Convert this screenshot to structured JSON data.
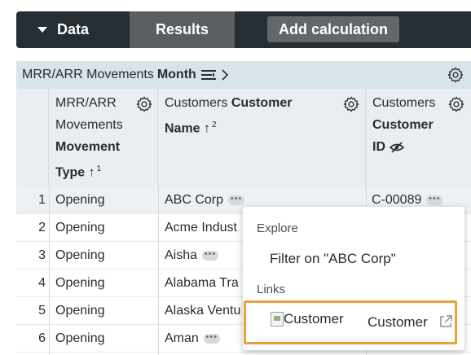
{
  "toolbar": {
    "data_tab": "Data",
    "results_tab": "Results",
    "add_calculation": "Add calculation"
  },
  "table": {
    "group_header": {
      "prefix": "MRR/ARR Movements",
      "bold": "Month"
    },
    "columns": [
      {
        "lines": [
          "MRR/ARR",
          "Movements"
        ],
        "bold_lines": [
          "Movement",
          "Type ↑"
        ],
        "sort_index": "1"
      },
      {
        "line1": "Customers",
        "line1_bold": "Customer",
        "line2_bold": "Name ↑",
        "sort_index": "2"
      },
      {
        "line1": "Customers",
        "line2_bold": "Customer",
        "line3_bold": "ID"
      }
    ],
    "rows": [
      {
        "num": "1",
        "type": "Opening",
        "name": "ABC Corp",
        "id": "C-00089"
      },
      {
        "num": "2",
        "type": "Opening",
        "name": "Acme Indust",
        "id": ""
      },
      {
        "num": "3",
        "type": "Opening",
        "name": "Aisha",
        "id": ""
      },
      {
        "num": "4",
        "type": "Opening",
        "name": "Alabama Tra",
        "id": ""
      },
      {
        "num": "5",
        "type": "Opening",
        "name": "Alaska Ventu",
        "id": ""
      },
      {
        "num": "6",
        "type": "Opening",
        "name": "Aman",
        "id": ""
      }
    ],
    "dots_label": "•••"
  },
  "popup": {
    "explore_section": "Explore",
    "filter_item": "Filter on \"ABC Corp\"",
    "links_section": "Links",
    "link_image_alt": "Customer",
    "link_label": "Customer"
  },
  "colors": {
    "accent_outline": "#e8a03a",
    "toolbar_bg": "#262d33",
    "group_header_bg": "#d9e3ea"
  }
}
